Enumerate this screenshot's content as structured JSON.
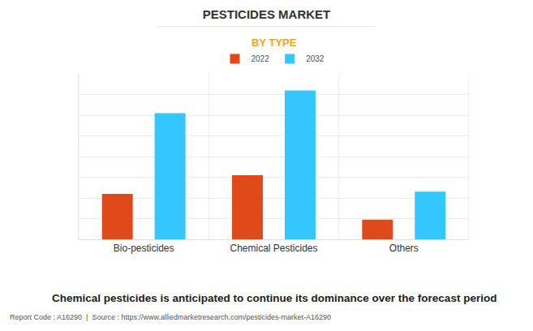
{
  "chart_data": {
    "type": "bar",
    "title": "PESTICIDES MARKET",
    "subtitle": "BY TYPE",
    "caption": "Chemical pesticides is anticipated to continue its dominance over the forecast period",
    "source": "Report Code : A16290  |  Source : https://www.alliedmarketresearch.com/pesticides-market-A16290",
    "categories": [
      "Bio-pesticides",
      "Chemical Pesticides",
      "Others"
    ],
    "series": [
      {
        "name": "2022",
        "color": "#e0491a",
        "values": [
          2.2,
          3.1,
          0.95
        ]
      },
      {
        "name": "2032",
        "color": "#33c6ff",
        "values": [
          6.1,
          7.2,
          2.3
        ]
      }
    ],
    "ylim": [
      0,
      8
    ],
    "yticks": [
      0,
      1,
      2,
      3,
      4,
      5,
      6,
      7,
      8
    ],
    "grid": true,
    "legend": "top",
    "tick_labels": "x"
  }
}
